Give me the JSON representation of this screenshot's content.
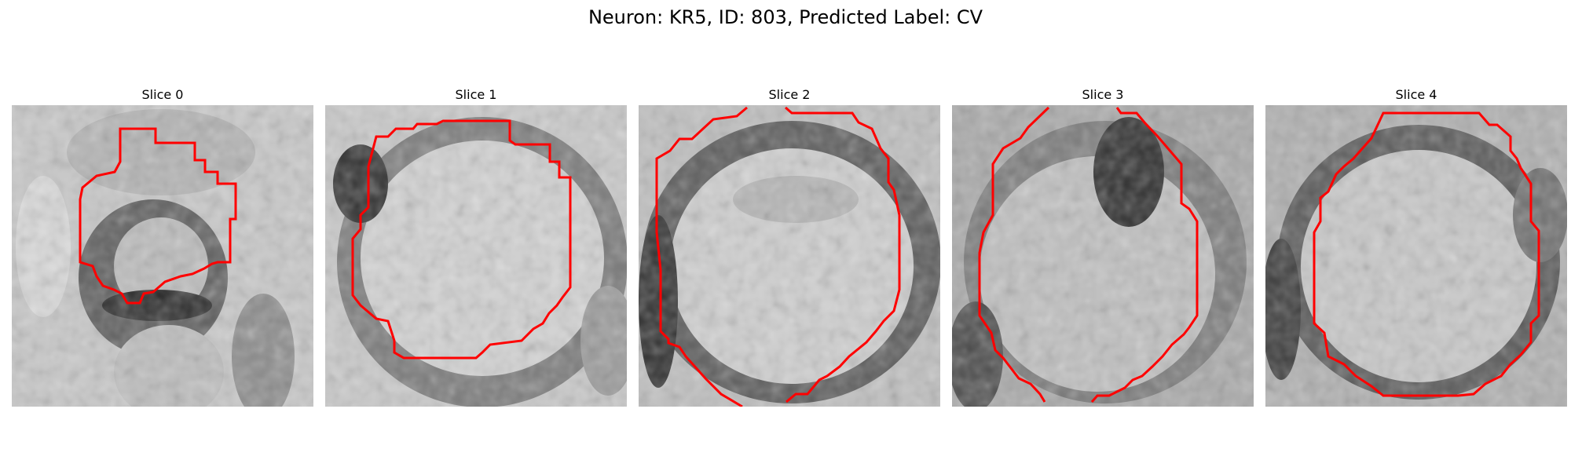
{
  "figure": {
    "title": "Neuron: KR5, ID: 803, Predicted Label: CV"
  },
  "panels": [
    {
      "title": "Slice 0"
    },
    {
      "title": "Slice 1"
    },
    {
      "title": "Slice 2"
    },
    {
      "title": "Slice 3"
    },
    {
      "title": "Slice 4"
    }
  ],
  "colors": {
    "contour": "#ff0000",
    "background": "#ffffff"
  }
}
